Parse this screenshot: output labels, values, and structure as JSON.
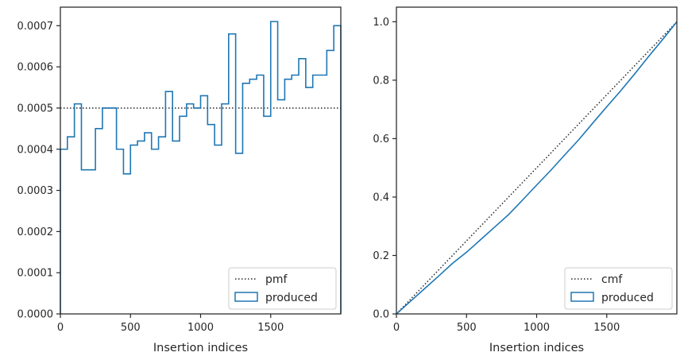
{
  "chart_data": [
    {
      "type": "line",
      "style": "step-histogram",
      "xlabel": "Insertion indices",
      "ylabel": "",
      "xlim": [
        0,
        2000
      ],
      "ylim": [
        0,
        0.000745
      ],
      "xticks": [
        0,
        500,
        1000,
        1500
      ],
      "xtick_labels": [
        "0",
        "500",
        "1000",
        "1500"
      ],
      "yticks": [
        0,
        0.0001,
        0.0002,
        0.0003,
        0.0004,
        0.0005,
        0.0006,
        0.0007
      ],
      "ytick_labels": [
        "0.0000",
        "0.0001",
        "0.0002",
        "0.0003",
        "0.0004",
        "0.0005",
        "0.0006",
        "0.0007"
      ],
      "grid": false,
      "legend_position": "lower-right",
      "series": [
        {
          "name": "pmf",
          "kind": "reference",
          "linestyle": "dotted",
          "color": "#262626",
          "x": [
            0,
            2000
          ],
          "y": [
            0.0005,
            0.0005
          ]
        },
        {
          "name": "produced",
          "kind": "step",
          "color": "#1f77b4",
          "bin_edges": [
            0,
            50,
            100,
            150,
            200,
            250,
            300,
            350,
            400,
            450,
            500,
            550,
            600,
            650,
            700,
            750,
            800,
            850,
            900,
            950,
            1000,
            1050,
            1100,
            1150,
            1200,
            1250,
            1300,
            1350,
            1400,
            1450,
            1500,
            1550,
            1600,
            1650,
            1700,
            1750,
            1800,
            1850,
            1900,
            1950,
            2000
          ],
          "values": [
            0.0004,
            0.00043,
            0.00051,
            0.00035,
            0.00035,
            0.00045,
            0.0005,
            0.0005,
            0.0004,
            0.00034,
            0.00041,
            0.00042,
            0.00044,
            0.0004,
            0.00043,
            0.00054,
            0.00042,
            0.00048,
            0.00051,
            0.0005,
            0.00053,
            0.00046,
            0.00041,
            0.00051,
            0.00068,
            0.00039,
            0.00056,
            0.00057,
            0.00058,
            0.00048,
            0.00071,
            0.00052,
            0.00057,
            0.00058,
            0.00062,
            0.00055,
            0.00058,
            0.00058,
            0.00064,
            0.0007
          ]
        }
      ]
    },
    {
      "type": "line",
      "xlabel": "Insertion indices",
      "ylabel": "",
      "xlim": [
        0,
        2000
      ],
      "ylim": [
        0,
        1.05
      ],
      "xticks": [
        0,
        500,
        1000,
        1500
      ],
      "xtick_labels": [
        "0",
        "500",
        "1000",
        "1500"
      ],
      "yticks": [
        0,
        0.2,
        0.4,
        0.6,
        0.8,
        1.0
      ],
      "ytick_labels": [
        "0.0",
        "0.2",
        "0.4",
        "0.6",
        "0.8",
        "1.0"
      ],
      "grid": false,
      "legend_position": "lower-right",
      "series": [
        {
          "name": "cmf",
          "kind": "reference",
          "linestyle": "dotted",
          "color": "#262626",
          "x": [
            0,
            2000
          ],
          "y": [
            0,
            1.0
          ]
        },
        {
          "name": "produced",
          "kind": "cumulative",
          "color": "#1f77b4",
          "x": [
            0,
            100,
            200,
            300,
            400,
            500,
            600,
            700,
            800,
            900,
            1000,
            1100,
            1200,
            1300,
            1400,
            1500,
            1600,
            1700,
            1800,
            1900,
            2000
          ],
          "y": [
            0,
            0.043,
            0.086,
            0.129,
            0.173,
            0.211,
            0.254,
            0.297,
            0.34,
            0.39,
            0.441,
            0.491,
            0.544,
            0.596,
            0.653,
            0.709,
            0.764,
            0.822,
            0.882,
            0.94,
            1.0
          ]
        }
      ]
    }
  ]
}
